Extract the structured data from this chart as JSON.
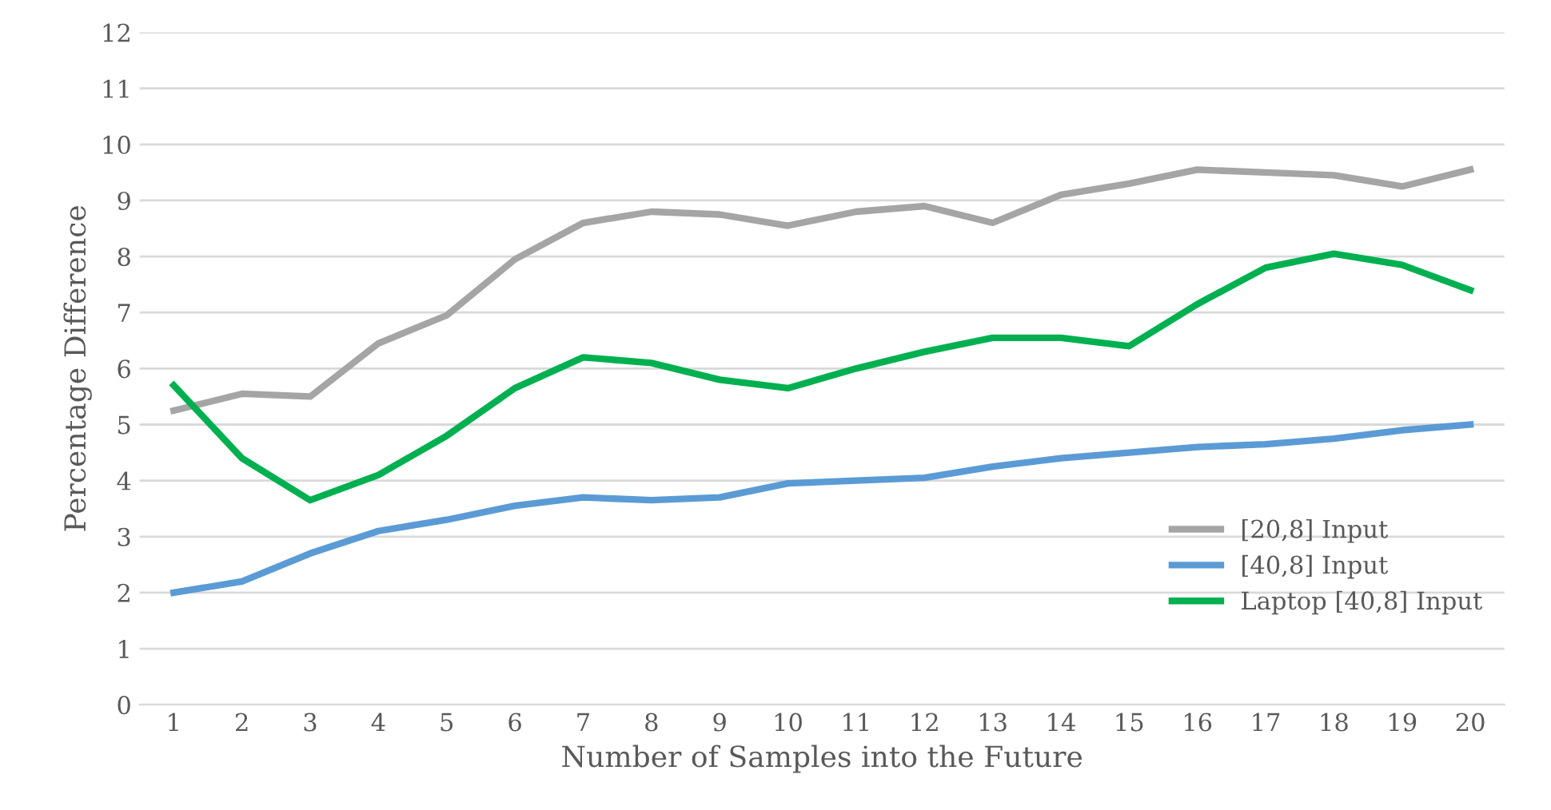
{
  "chart_data": {
    "type": "line",
    "xlabel": "Number of Samples into the Future",
    "ylabel": "Percentage Difference",
    "categories": [
      "1",
      "2",
      "3",
      "4",
      "5",
      "6",
      "7",
      "8",
      "9",
      "10",
      "11",
      "12",
      "13",
      "14",
      "15",
      "16",
      "17",
      "18",
      "19",
      "20"
    ],
    "series": [
      {
        "name": "[20,8] Input",
        "color": "#a5a5a5",
        "values": [
          5.25,
          5.55,
          5.5,
          6.45,
          6.95,
          7.95,
          8.6,
          8.8,
          8.75,
          8.55,
          8.8,
          8.9,
          8.6,
          9.1,
          9.3,
          9.55,
          9.5,
          9.45,
          9.25,
          9.55
        ]
      },
      {
        "name": "[40,8] Input",
        "color": "#5b9bd5",
        "values": [
          2.0,
          2.2,
          2.7,
          3.1,
          3.3,
          3.55,
          3.7,
          3.65,
          3.7,
          3.95,
          4.0,
          4.05,
          4.25,
          4.4,
          4.5,
          4.6,
          4.65,
          4.75,
          4.9,
          5.0
        ]
      },
      {
        "name": "Laptop [40,8] Input",
        "color": "#00b050",
        "values": [
          5.7,
          4.4,
          3.65,
          4.1,
          4.8,
          5.65,
          6.2,
          6.1,
          5.8,
          5.65,
          6.0,
          6.3,
          6.55,
          6.55,
          6.4,
          7.15,
          7.8,
          8.05,
          7.85,
          7.4
        ]
      }
    ],
    "ylim": [
      0,
      12
    ],
    "yticks": [
      0,
      1,
      2,
      3,
      4,
      5,
      6,
      7,
      8,
      9,
      10,
      11,
      12
    ],
    "grid": "y",
    "legend": "right",
    "marker": "none",
    "line_style": "solid"
  }
}
